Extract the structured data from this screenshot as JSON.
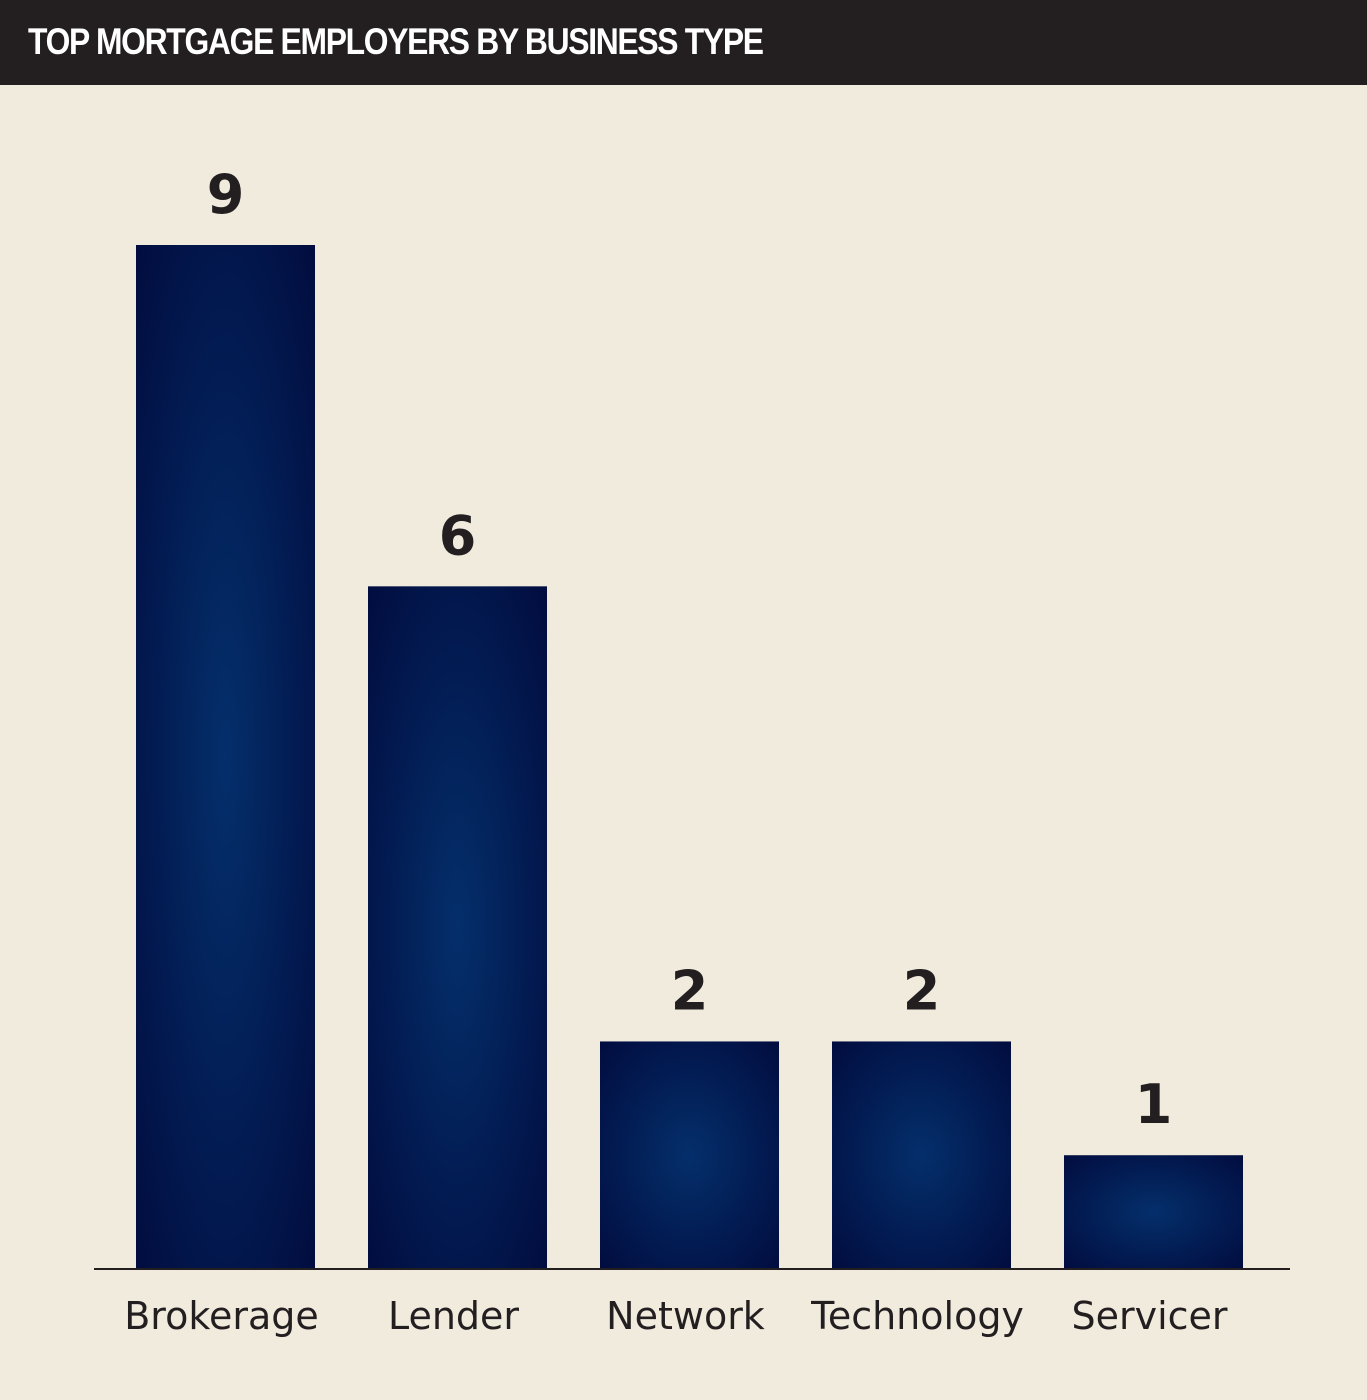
{
  "header": {
    "title": "TOP MORTGAGE EMPLOYERS BY BUSINESS TYPE"
  },
  "colors": {
    "background": "#f1ebde",
    "header_bg": "#231f20",
    "header_text": "#ffffff",
    "bar_center": "#042f6b",
    "bar_edge": "#010a3c",
    "text": "#231f20",
    "axis": "#231f20"
  },
  "chart_data": {
    "type": "bar",
    "title": "TOP MORTGAGE EMPLOYERS BY BUSINESS TYPE",
    "categories": [
      "Brokerage",
      "Lender",
      "Network",
      "Technology",
      "Servicer"
    ],
    "values": [
      9,
      6,
      2,
      2,
      1
    ],
    "ylim": [
      0,
      9
    ],
    "data_labels": true,
    "grid": false,
    "legend": "none"
  }
}
